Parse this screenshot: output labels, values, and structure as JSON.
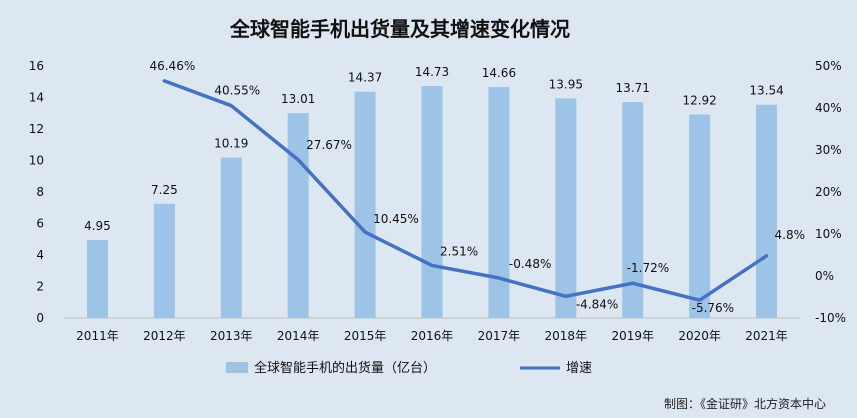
{
  "chart_data": {
    "type": "bar+line",
    "title": "全球智能手机出货量及其增速变化情况",
    "categories": [
      "2011年",
      "2012年",
      "2013年",
      "2014年",
      "2015年",
      "2016年",
      "2017年",
      "2018年",
      "2019年",
      "2020年",
      "2021年"
    ],
    "series": [
      {
        "name": "全球智能手机的出货量（亿台）",
        "type": "bar",
        "axis": "left",
        "color": "#9dc3e6",
        "values": [
          4.95,
          7.25,
          10.19,
          13.01,
          14.37,
          14.73,
          14.66,
          13.95,
          13.71,
          12.92,
          13.54
        ],
        "labels": [
          "4.95",
          "7.25",
          "10.19",
          "13.01",
          "14.37",
          "14.73",
          "14.66",
          "13.95",
          "13.71",
          "12.92",
          "13.54"
        ]
      },
      {
        "name": "增速",
        "type": "line",
        "axis": "right",
        "color": "#4472c4",
        "values": [
          null,
          46.46,
          40.55,
          27.67,
          10.45,
          2.51,
          -0.48,
          -4.84,
          -1.72,
          -5.76,
          4.8
        ],
        "labels": [
          null,
          "46.46%",
          "40.55%",
          "27.67%",
          "10.45%",
          "2.51%",
          "-0.48%",
          "-4.84%",
          "-1.72%",
          "-5.76%",
          "4.8%"
        ]
      }
    ],
    "y_left": {
      "ylim": [
        0,
        16
      ],
      "ticks": [
        "0",
        "2",
        "4",
        "6",
        "8",
        "10",
        "12",
        "14",
        "16"
      ]
    },
    "y_right": {
      "ylim": [
        -10,
        50
      ],
      "ticks": [
        "-10%",
        "0%",
        "10%",
        "20%",
        "30%",
        "40%",
        "50%"
      ]
    },
    "grid": false,
    "legend": "bottom"
  },
  "source": "制图：《金证研》北方资本中心"
}
